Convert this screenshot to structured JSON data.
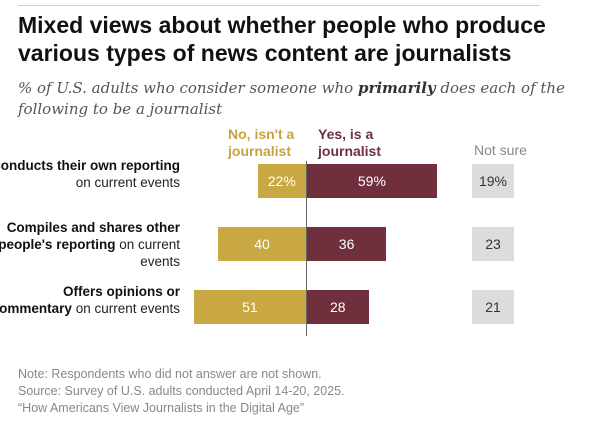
{
  "title": "Mixed views about whether people who produce various types of news content are journalists",
  "subtitle": {
    "before": "% of U.S. adults who consider someone who ",
    "emphasis": "primarily",
    "after": " does each of the following to be a journalist"
  },
  "columns": {
    "no": "No, isn't a journalist",
    "yes": "Yes, is a journalist",
    "not_sure": "Not sure"
  },
  "colors": {
    "no": "#c9a843",
    "yes": "#6f2f3d",
    "not_sure": "#dcdcdc"
  },
  "rows": [
    {
      "label_bold": "Conducts their own reporting",
      "label_rest": " on current events"
    },
    {
      "label_bold": "Compiles and shares other people's reporting",
      "label_rest": " on current events"
    },
    {
      "label_bold": "Offers opinions or commentary",
      "label_rest": " on current events"
    }
  ],
  "chart_data": {
    "type": "bar",
    "orientation": "horizontal-diverging",
    "categories": [
      "Conducts their own reporting on current events",
      "Compiles and shares other people's reporting on current events",
      "Offers opinions or commentary on current events"
    ],
    "series": [
      {
        "name": "No, isn't a journalist",
        "values": [
          22,
          40,
          51
        ],
        "labels": [
          "22%",
          "40",
          "51"
        ]
      },
      {
        "name": "Yes, is a journalist",
        "values": [
          59,
          36,
          28
        ],
        "labels": [
          "59%",
          "36",
          "28"
        ]
      },
      {
        "name": "Not sure",
        "values": [
          19,
          23,
          21
        ],
        "labels": [
          "19%",
          "23",
          "21"
        ]
      }
    ],
    "unit": "%"
  },
  "notes": [
    "Note: Respondents who did not answer are not shown.",
    "Source: Survey of U.S. adults conducted April 14-20, 2025.",
    "“How Americans View Journalists in the Digital Age”"
  ]
}
